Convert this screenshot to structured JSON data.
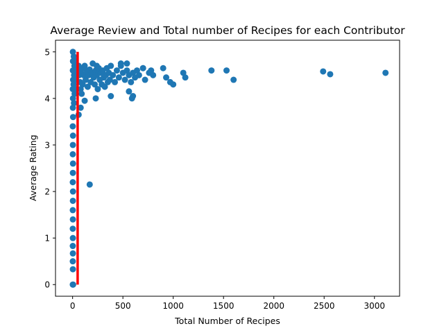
{
  "chart_data": {
    "type": "scatter",
    "title": "Average Review and Total number of Recipes for each Contributor",
    "xlabel": "Total Number of Recipes",
    "ylabel": "Average Rating",
    "xlim": [
      -170,
      3250
    ],
    "ylim": [
      -0.25,
      5.25
    ],
    "xticks": [
      0,
      500,
      1000,
      1500,
      2000,
      2500,
      3000
    ],
    "yticks": [
      0,
      1,
      2,
      3,
      4,
      5
    ],
    "grid": false,
    "legend": "none",
    "point_color": "#1f77b4",
    "threshold_line": {
      "x": 50,
      "y_range": [
        0,
        5
      ],
      "color": "#ff0000"
    },
    "series": [
      {
        "points": [
          [
            3,
            5.0
          ],
          [
            4,
            4.8
          ],
          [
            3,
            4.6
          ],
          [
            5,
            4.4
          ],
          [
            2,
            4.2
          ],
          [
            4,
            4.0
          ],
          [
            3,
            3.8
          ],
          [
            5,
            3.6
          ],
          [
            2,
            3.4
          ],
          [
            4,
            3.2
          ],
          [
            3,
            3.0
          ],
          [
            2,
            2.8
          ],
          [
            4,
            2.6
          ],
          [
            3,
            2.4
          ],
          [
            2,
            2.2
          ],
          [
            4,
            2.0
          ],
          [
            3,
            1.8
          ],
          [
            2,
            1.6
          ],
          [
            3,
            1.4
          ],
          [
            2,
            1.2
          ],
          [
            3,
            1.0
          ],
          [
            2,
            0.83
          ],
          [
            3,
            0.67
          ],
          [
            2,
            0.5
          ],
          [
            3,
            0.33
          ],
          [
            2,
            0.0
          ],
          [
            5,
            0.0
          ],
          [
            12,
            4.9
          ],
          [
            15,
            4.5
          ],
          [
            18,
            4.7
          ],
          [
            10,
            4.3
          ],
          [
            20,
            4.1
          ],
          [
            14,
            3.9
          ],
          [
            25,
            4.6
          ],
          [
            30,
            4.8
          ],
          [
            35,
            4.4
          ],
          [
            40,
            4.2
          ],
          [
            60,
            4.7
          ],
          [
            65,
            4.5
          ],
          [
            70,
            4.6
          ],
          [
            75,
            4.35
          ],
          [
            80,
            4.2
          ],
          [
            85,
            4.55
          ],
          [
            90,
            4.1
          ],
          [
            95,
            4.65
          ],
          [
            100,
            4.3
          ],
          [
            110,
            4.5
          ],
          [
            120,
            4.7
          ],
          [
            130,
            4.4
          ],
          [
            140,
            4.6
          ],
          [
            150,
            4.25
          ],
          [
            160,
            4.5
          ],
          [
            170,
            4.62
          ],
          [
            180,
            4.35
          ],
          [
            190,
            4.55
          ],
          [
            200,
            4.75
          ],
          [
            210,
            4.45
          ],
          [
            220,
            4.3
          ],
          [
            230,
            4.6
          ],
          [
            240,
            4.5
          ],
          [
            250,
            4.2
          ],
          [
            260,
            4.65
          ],
          [
            270,
            4.4
          ],
          [
            280,
            4.55
          ],
          [
            290,
            4.3
          ],
          [
            300,
            4.6
          ],
          [
            310,
            4.45
          ],
          [
            320,
            4.25
          ],
          [
            330,
            4.5
          ],
          [
            340,
            4.65
          ],
          [
            350,
            4.35
          ],
          [
            360,
            4.55
          ],
          [
            370,
            4.4
          ],
          [
            380,
            4.7
          ],
          [
            400,
            4.5
          ],
          [
            420,
            4.35
          ],
          [
            440,
            4.6
          ],
          [
            460,
            4.45
          ],
          [
            480,
            4.7
          ],
          [
            500,
            4.55
          ],
          [
            520,
            4.4
          ],
          [
            540,
            4.6
          ],
          [
            560,
            4.5
          ],
          [
            580,
            4.35
          ],
          [
            600,
            4.55
          ],
          [
            620,
            4.45
          ],
          [
            640,
            4.6
          ],
          [
            660,
            4.5
          ],
          [
            700,
            4.65
          ],
          [
            720,
            4.4
          ],
          [
            760,
            4.55
          ],
          [
            800,
            4.5
          ],
          [
            120,
            3.95
          ],
          [
            80,
            3.8
          ],
          [
            60,
            3.65
          ],
          [
            230,
            4.0
          ],
          [
            380,
            4.05
          ],
          [
            560,
            4.15
          ],
          [
            590,
            4.0
          ],
          [
            600,
            4.05
          ],
          [
            170,
            2.15
          ],
          [
            240,
            4.7
          ],
          [
            480,
            4.75
          ],
          [
            540,
            4.75
          ],
          [
            700,
            4.65
          ],
          [
            780,
            4.6
          ],
          [
            900,
            4.65
          ],
          [
            930,
            4.45
          ],
          [
            970,
            4.35
          ],
          [
            1000,
            4.3
          ],
          [
            1100,
            4.55
          ],
          [
            1120,
            4.45
          ],
          [
            1380,
            4.6
          ],
          [
            1530,
            4.6
          ],
          [
            1600,
            4.4
          ],
          [
            2490,
            4.58
          ],
          [
            2560,
            4.52
          ],
          [
            3110,
            4.55
          ]
        ]
      }
    ]
  }
}
